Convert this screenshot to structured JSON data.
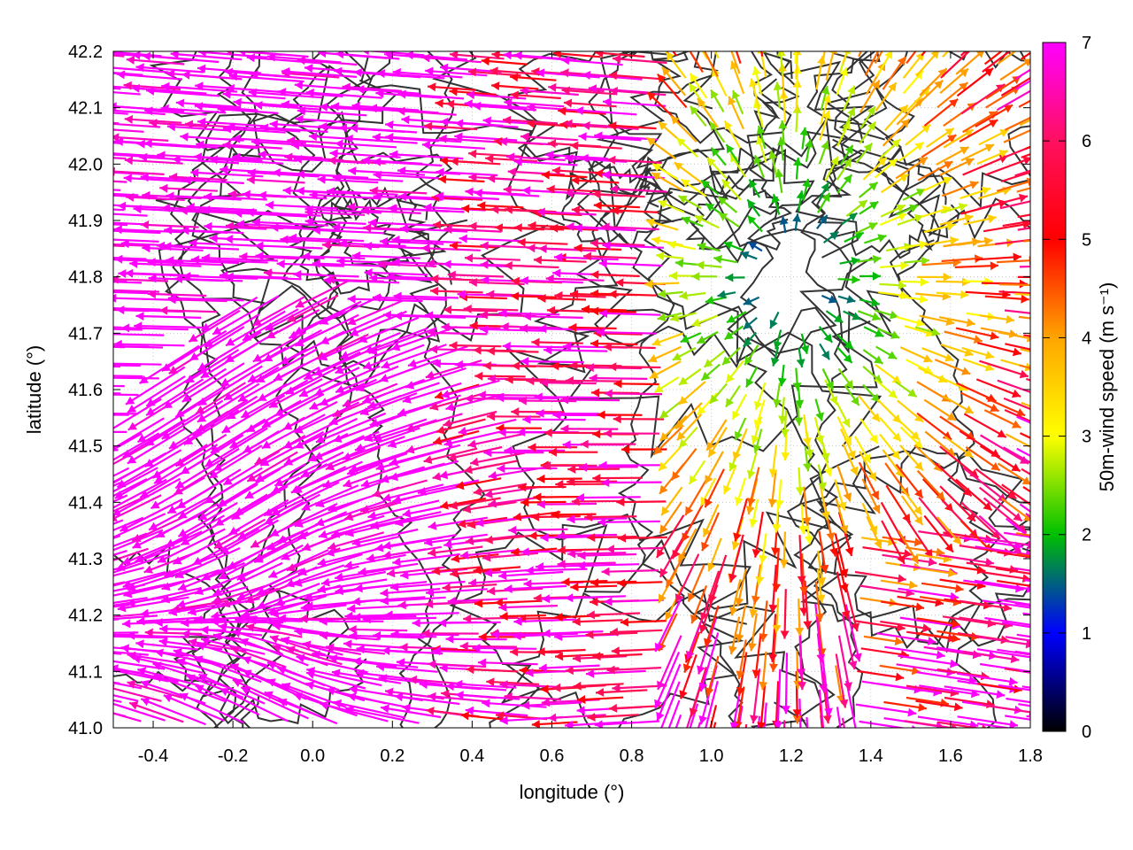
{
  "chart_data": {
    "type": "vector-field",
    "xlabel": "longitude (°)",
    "ylabel": "latitude (°)",
    "xlim": [
      -0.5,
      1.8
    ],
    "ylim": [
      41.0,
      42.2
    ],
    "xticks": [
      "-0.4",
      "-0.2",
      "0.0",
      "0.2",
      "0.4",
      "0.6",
      "0.8",
      "1.0",
      "1.2",
      "1.4",
      "1.6",
      "1.8"
    ],
    "xtick_values": [
      -0.4,
      -0.2,
      0.0,
      0.2,
      0.4,
      0.6,
      0.8,
      1.0,
      1.2,
      1.4,
      1.6,
      1.8
    ],
    "yticks": [
      "41.0",
      "41.1",
      "41.2",
      "41.3",
      "41.4",
      "41.5",
      "41.6",
      "41.7",
      "41.8",
      "41.9",
      "42.0",
      "42.1",
      "42.2"
    ],
    "ytick_values": [
      41.0,
      41.1,
      41.2,
      41.3,
      41.4,
      41.5,
      41.6,
      41.7,
      41.8,
      41.9,
      42.0,
      42.1,
      42.2
    ],
    "grid": "dotted",
    "colorbar": {
      "label": "50m-wind speed (m s⁻¹)",
      "range": [
        0,
        7
      ],
      "ticks": [
        "0",
        "1",
        "2",
        "3",
        "4",
        "5",
        "6",
        "7"
      ],
      "colors": [
        "#000000",
        "#0000ff",
        "#00c000",
        "#ffff00",
        "#ffa500",
        "#ff0000",
        "#ff00ff"
      ]
    },
    "divergence_center": [
      1.2,
      41.8
    ],
    "convergence_center": [
      0.05,
      41.2
    ],
    "contour_color": "#333333"
  }
}
